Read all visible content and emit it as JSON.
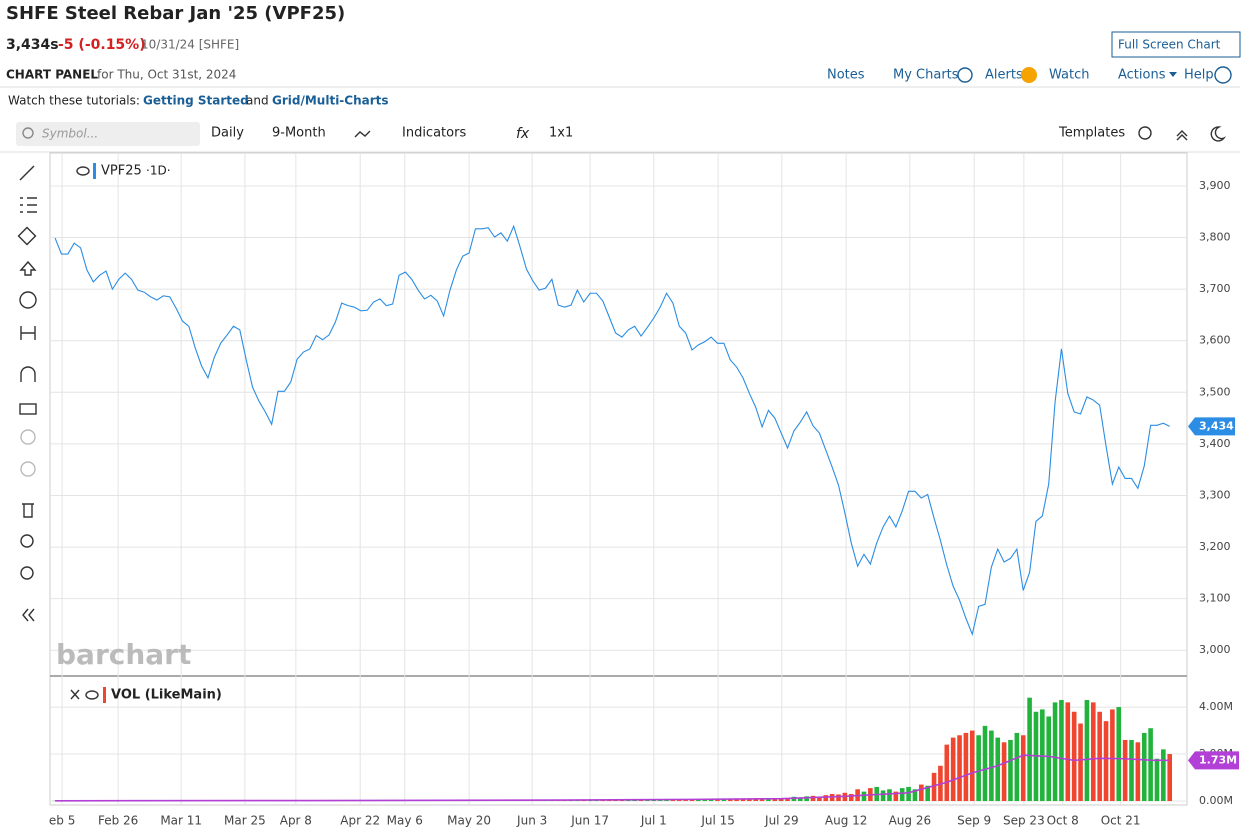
{
  "header": {
    "title": "SHFE Steel Rebar Jan '25 (VPF25)",
    "price": "3,434s",
    "change": "-5 (-0.15%)",
    "date": "10/31/24 [SHFE]",
    "full_screen": "Full Screen Chart",
    "panel": "CHART PANEL",
    "panel_for": "for Thu, Oct 31st, 2024",
    "links": [
      "Notes",
      "My Charts",
      "Alerts",
      "Watch",
      "Actions",
      "Help"
    ],
    "tutorials": {
      "lead": "Watch these tutorials:",
      "first": "Getting Started",
      "and": "and",
      "second": "Grid/Multi-Charts"
    }
  },
  "toolbar": {
    "symbol": "Symbol...",
    "interval": "Daily",
    "range": "9-Month",
    "indicators": "Indicators",
    "fx": "fx",
    "layout": "1x1",
    "templates": "Templates"
  },
  "watermark": "barchart",
  "chart_data": {
    "type": "line",
    "color": "#2b8de3",
    "legend_symbol": "VPF25",
    "legend_interval": "·1D·",
    "last_value_label": "3,434",
    "values": [
      3799,
      3768,
      3768,
      3789,
      3780,
      3737,
      3714,
      3727,
      3735,
      3700,
      3719,
      3731,
      3719,
      3698,
      3694,
      3685,
      3679,
      3687,
      3685,
      3663,
      3638,
      3628,
      3586,
      3551,
      3528,
      3568,
      3595,
      3611,
      3628,
      3621,
      3563,
      3510,
      3483,
      3462,
      3438,
      3502,
      3502,
      3520,
      3564,
      3578,
      3584,
      3610,
      3602,
      3611,
      3636,
      3673,
      3668,
      3665,
      3658,
      3659,
      3675,
      3681,
      3668,
      3671,
      3727,
      3733,
      3719,
      3698,
      3681,
      3688,
      3677,
      3648,
      3698,
      3737,
      3764,
      3770,
      3817,
      3817,
      3819,
      3801,
      3809,
      3793,
      3822,
      3782,
      3739,
      3716,
      3698,
      3702,
      3719,
      3669,
      3665,
      3669,
      3698,
      3675,
      3692,
      3692,
      3677,
      3646,
      3615,
      3607,
      3621,
      3628,
      3609,
      3626,
      3644,
      3665,
      3692,
      3673,
      3628,
      3615,
      3582,
      3592,
      3598,
      3607,
      3595,
      3595,
      3563,
      3549,
      3528,
      3498,
      3471,
      3433,
      3465,
      3450,
      3421,
      3392,
      3425,
      3442,
      3462,
      3435,
      3421,
      3388,
      3355,
      3320,
      3266,
      3208,
      3163,
      3186,
      3167,
      3208,
      3239,
      3260,
      3239,
      3270,
      3308,
      3308,
      3295,
      3302,
      3256,
      3213,
      3165,
      3124,
      3097,
      3062,
      3031,
      3085,
      3089,
      3161,
      3196,
      3171,
      3178,
      3196,
      3116,
      3151,
      3250,
      3260,
      3322,
      3481,
      3584,
      3498,
      3462,
      3458,
      3491,
      3485,
      3475,
      3396,
      3322,
      3355,
      3333,
      3333,
      3314,
      3357,
      3436,
      3436,
      3440,
      3434
    ],
    "xlim": [
      -0.8,
      177.4
    ],
    "xticks": [
      {
        "value": 1.1,
        "label": "eb 5"
      },
      {
        "value": 9.9,
        "label": "Feb 26"
      },
      {
        "value": 19.8,
        "label": "Mar 11"
      },
      {
        "value": 29.8,
        "label": "Mar 25"
      },
      {
        "value": 37.8,
        "label": "Apr 8"
      },
      {
        "value": 47.9,
        "label": "Apr 22"
      },
      {
        "value": 54.9,
        "label": "May 6"
      },
      {
        "value": 65,
        "label": "May 20"
      },
      {
        "value": 74.9,
        "label": "Jun 3"
      },
      {
        "value": 84,
        "label": "Jun 17"
      },
      {
        "value": 94,
        "label": "Jul 1"
      },
      {
        "value": 104.1,
        "label": "Jul 15"
      },
      {
        "value": 114.1,
        "label": "Jul 29"
      },
      {
        "value": 124.2,
        "label": "Aug 12"
      },
      {
        "value": 134.2,
        "label": "Aug 26"
      },
      {
        "value": 144.3,
        "label": "Sep 9"
      },
      {
        "value": 152.1,
        "label": "Sep 23"
      },
      {
        "value": 158.2,
        "label": "Oct 8"
      },
      {
        "value": 167.3,
        "label": "Oct 21"
      }
    ],
    "ylim": [
      2952,
      3960
    ],
    "yticks": [
      {
        "value": 3000,
        "label": "3,000"
      },
      {
        "value": 3100,
        "label": "3,100"
      },
      {
        "value": 3200,
        "label": "3,200"
      },
      {
        "value": 3300,
        "label": "3,300"
      },
      {
        "value": 3400,
        "label": "3,400"
      },
      {
        "value": 3500,
        "label": "3,500"
      },
      {
        "value": 3600,
        "label": "3,600"
      },
      {
        "value": 3700,
        "label": "3,700"
      },
      {
        "value": 3800,
        "label": "3,800"
      },
      {
        "value": 3900,
        "label": "3,900"
      }
    ],
    "grid": true,
    "volume": {
      "type": "bar",
      "title": "VOL (LikeMain)",
      "up_color": "#22b33c",
      "down_color": "#f0452f",
      "values": [
        0.01,
        0.01,
        0.01,
        0.01,
        0.01,
        0.01,
        0.01,
        0.01,
        0.01,
        0.01,
        0.01,
        0.01,
        0.01,
        0.01,
        0.01,
        0.01,
        0.01,
        0.01,
        0.01,
        0.01,
        0.01,
        0.01,
        0.01,
        0.01,
        0.01,
        0.01,
        0.01,
        0.01,
        0.01,
        0.01,
        0.01,
        0.01,
        0.01,
        0.01,
        0.01,
        0.01,
        0.01,
        0.01,
        0.01,
        0.01,
        0.02,
        0.02,
        0.02,
        0.02,
        0.02,
        0.02,
        0.02,
        0.02,
        0.02,
        0.02,
        0.02,
        0.02,
        0.02,
        0.02,
        0.02,
        0.02,
        0.02,
        0.02,
        0.02,
        0.02,
        0.02,
        0.02,
        0.02,
        0.02,
        0.02,
        0.02,
        0.02,
        0.02,
        0.02,
        0.02,
        0.02,
        0.02,
        0.02,
        0.02,
        0.02,
        0.02,
        0.02,
        0.02,
        0.02,
        0.02,
        0.04,
        0.04,
        0.04,
        0.04,
        0.04,
        0.04,
        0.04,
        0.04,
        0.04,
        0.04,
        0.04,
        0.04,
        0.04,
        0.04,
        0.04,
        0.04,
        0.04,
        0.04,
        0.04,
        0.04,
        0.07,
        0.07,
        0.07,
        0.07,
        0.07,
        0.07,
        0.07,
        0.07,
        0.07,
        0.07,
        0.07,
        0.07,
        0.07,
        0.07,
        0.12,
        0.1,
        0.18,
        0.15,
        0.2,
        0.22,
        0.18,
        0.25,
        0.3,
        0.28,
        0.35,
        0.3,
        0.5,
        0.4,
        0.55,
        0.6,
        0.45,
        0.5,
        0.4,
        0.55,
        0.6,
        0.5,
        0.7,
        0.65,
        1.2,
        1.5,
        2.4,
        2.7,
        2.8,
        2.9,
        3.0,
        2.8,
        3.2,
        3.0,
        2.7,
        2.5,
        2.6,
        2.9,
        2.8,
        4.4,
        3.8,
        3.9,
        3.6,
        4.2,
        4.3,
        4.2,
        3.8,
        3.3,
        4.3,
        4.2,
        3.8,
        3.4,
        3.9,
        4.0,
        2.6,
        2.6,
        2.5,
        2.9,
        3.1,
        1.8,
        2.2,
        2.0
      ],
      "ylim": [
        -0.17,
        4.94
      ],
      "yticks": [
        {
          "value": 0,
          "label": "0.00M"
        },
        {
          "value": 2,
          "label": "2.00M"
        },
        {
          "value": 4,
          "label": "4.00M"
        }
      ],
      "ma": {
        "color": "#b23fd6",
        "last_label": "1.73M",
        "x": [
          0,
          40,
          80,
          100,
          114,
          124,
          134,
          140,
          144,
          148,
          152,
          156,
          160,
          164,
          168,
          172,
          175
        ],
        "values": [
          0.01,
          0.02,
          0.04,
          0.07,
          0.1,
          0.2,
          0.35,
          0.8,
          1.2,
          1.5,
          1.95,
          1.9,
          1.73,
          1.82,
          1.8,
          1.74,
          1.73
        ]
      }
    }
  }
}
